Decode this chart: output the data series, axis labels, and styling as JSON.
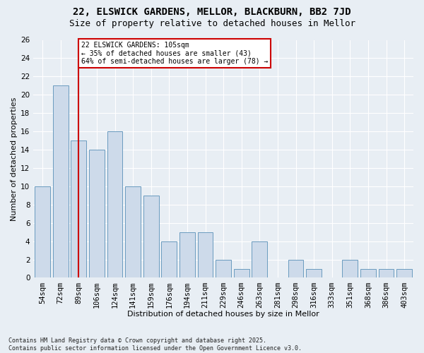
{
  "title_line1": "22, ELSWICK GARDENS, MELLOR, BLACKBURN, BB2 7JD",
  "title_line2": "Size of property relative to detached houses in Mellor",
  "xlabel": "Distribution of detached houses by size in Mellor",
  "ylabel": "Number of detached properties",
  "categories": [
    "54sqm",
    "72sqm",
    "89sqm",
    "106sqm",
    "124sqm",
    "141sqm",
    "159sqm",
    "176sqm",
    "194sqm",
    "211sqm",
    "229sqm",
    "246sqm",
    "263sqm",
    "281sqm",
    "298sqm",
    "316sqm",
    "333sqm",
    "351sqm",
    "368sqm",
    "386sqm",
    "403sqm"
  ],
  "values": [
    10,
    21,
    15,
    14,
    16,
    10,
    9,
    4,
    5,
    5,
    2,
    1,
    4,
    0,
    2,
    1,
    0,
    2,
    1,
    1,
    1
  ],
  "bar_color": "#cddaea",
  "bar_edge_color": "#6a9bbf",
  "vline_x_index": 2,
  "vline_color": "#cc0000",
  "annotation_text": "22 ELSWICK GARDENS: 105sqm\n← 35% of detached houses are smaller (43)\n64% of semi-detached houses are larger (78) →",
  "annotation_box_facecolor": "#ffffff",
  "annotation_box_edgecolor": "#cc0000",
  "ylim": [
    0,
    26
  ],
  "yticks": [
    0,
    2,
    4,
    6,
    8,
    10,
    12,
    14,
    16,
    18,
    20,
    22,
    24,
    26
  ],
  "footer_line1": "Contains HM Land Registry data © Crown copyright and database right 2025.",
  "footer_line2": "Contains public sector information licensed under the Open Government Licence v3.0.",
  "background_color": "#e8eef4",
  "plot_bg_color": "#e8eef4",
  "grid_color": "#ffffff",
  "title1_fontsize": 10,
  "title2_fontsize": 9,
  "xlabel_fontsize": 8,
  "ylabel_fontsize": 8,
  "tick_fontsize": 7.5,
  "annot_fontsize": 7,
  "footer_fontsize": 6
}
